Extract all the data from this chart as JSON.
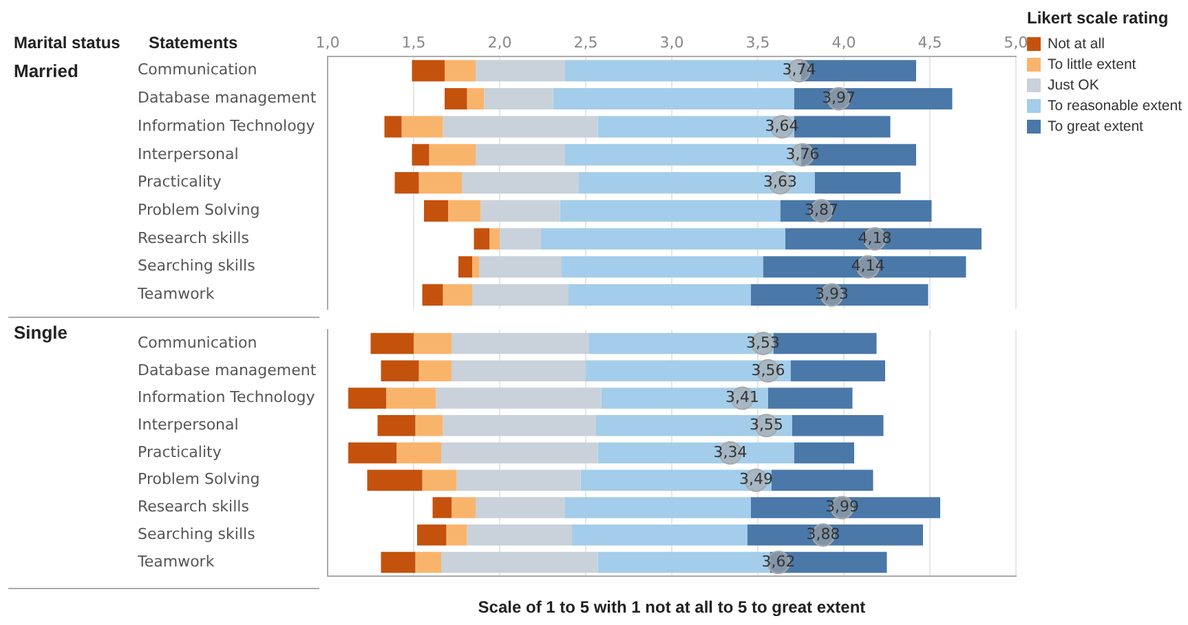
{
  "chart_data": [
    {
      "type": "bar",
      "orientation": "horizontal",
      "ylabel": "Married",
      "annotations": [
        "Marital status",
        "Statements"
      ],
      "legend_title": "Likert scale rating",
      "legend": "top right",
      "grid": "x",
      "categories": [
        "Communication",
        "Database management",
        "Information Technology",
        "Interpersonal",
        "Practicality",
        "Problem Solving",
        "Research skills",
        "Searching skills",
        "Teamwork"
      ],
      "xlim": [
        1,
        5
      ],
      "xticks": [
        {
          "value": 1,
          "label": "1,0"
        },
        {
          "value": 1.5,
          "label": "1,5"
        },
        {
          "value": 2,
          "label": "2,0"
        },
        {
          "value": 2.5,
          "label": "2,5"
        },
        {
          "value": 3,
          "label": "3,0"
        },
        {
          "value": 3.5,
          "label": "3,5"
        },
        {
          "value": 4,
          "label": "4,0"
        },
        {
          "value": 4.5,
          "label": "4,5"
        },
        {
          "value": 5,
          "label": "5,0"
        }
      ],
      "series": [
        {
          "name": "Not at all",
          "color": "#c4520c",
          "base": [
            1.49,
            1.68,
            1.33,
            1.49,
            1.39,
            1.56,
            1.85,
            1.76,
            1.55
          ],
          "values": [
            0.19,
            0.13,
            0.1,
            0.1,
            0.14,
            0.14,
            0.09,
            0.08,
            0.12
          ]
        },
        {
          "name": "To little extent",
          "color": "#f9b46c",
          "base": [
            1.68,
            1.81,
            1.43,
            1.59,
            1.53,
            1.7,
            1.94,
            1.84,
            1.67
          ],
          "values": [
            0.18,
            0.1,
            0.24,
            0.27,
            0.25,
            0.19,
            0.06,
            0.04,
            0.17
          ]
        },
        {
          "name": "Just OK",
          "color": "#c9d1da",
          "base": [
            1.86,
            1.91,
            1.67,
            1.86,
            1.78,
            1.89,
            2.0,
            1.88,
            1.84
          ],
          "values": [
            0.52,
            0.4,
            0.9,
            0.52,
            0.68,
            0.46,
            0.24,
            0.48,
            0.56
          ]
        },
        {
          "name": "To reasonable extent",
          "color": "#a3cdea",
          "base": [
            2.38,
            2.31,
            2.57,
            2.38,
            2.46,
            2.35,
            2.24,
            2.36,
            2.4
          ],
          "values": [
            1.37,
            1.4,
            1.14,
            1.37,
            1.37,
            1.28,
            1.42,
            1.17,
            1.06
          ]
        },
        {
          "name": "To great extent",
          "color": "#4a78a8",
          "base": [
            3.75,
            3.71,
            3.71,
            3.75,
            3.83,
            3.63,
            3.66,
            3.53,
            3.46
          ],
          "values": [
            0.67,
            0.92,
            0.56,
            0.67,
            0.5,
            0.88,
            1.14,
            1.18,
            1.03
          ]
        },
        {
          "type": "scatter",
          "color": "#a8a8a8",
          "values": [
            3.74,
            3.97,
            3.64,
            3.76,
            3.63,
            3.87,
            4.18,
            4.14,
            3.93
          ],
          "value_labels": [
            "3,74",
            "3,97",
            "3,64",
            "3,76",
            "3,63",
            "3,87",
            "4,18",
            "4,14",
            "3,93"
          ]
        }
      ]
    },
    {
      "type": "bar",
      "orientation": "horizontal",
      "ylabel": "Single",
      "xlabel": "Scale of 1 to 5 with 1 not at all to 5 to great extent",
      "grid": "x",
      "tick_labels": "y",
      "categories": [
        "Communication",
        "Database management",
        "Information Technology",
        "Interpersonal",
        "Practicality",
        "Problem Solving",
        "Research skills",
        "Searching skills",
        "Teamwork"
      ],
      "xlim": [
        1,
        5
      ],
      "xticks": [
        1,
        1.5,
        2,
        2.5,
        3,
        3.5,
        4,
        4.5,
        5
      ],
      "series": [
        {
          "color": "#c4520c",
          "base": [
            1.25,
            1.31,
            1.12,
            1.29,
            1.12,
            1.23,
            1.61,
            1.52,
            1.31
          ],
          "values": [
            0.25,
            0.22,
            0.22,
            0.22,
            0.28,
            0.32,
            0.11,
            0.17,
            0.2
          ]
        },
        {
          "color": "#f9b46c",
          "base": [
            1.5,
            1.53,
            1.34,
            1.51,
            1.4,
            1.55,
            1.72,
            1.69,
            1.51
          ],
          "values": [
            0.22,
            0.19,
            0.29,
            0.16,
            0.26,
            0.2,
            0.14,
            0.12,
            0.15
          ]
        },
        {
          "color": "#c9d1da",
          "base": [
            1.72,
            1.72,
            1.63,
            1.67,
            1.66,
            1.75,
            1.86,
            1.81,
            1.66
          ],
          "values": [
            0.8,
            0.78,
            0.96,
            0.89,
            0.91,
            0.72,
            0.52,
            0.61,
            0.91
          ]
        },
        {
          "color": "#a3cdea",
          "base": [
            2.52,
            2.5,
            2.59,
            2.56,
            2.57,
            2.47,
            2.38,
            2.42,
            2.57
          ],
          "values": [
            1.07,
            1.19,
            0.97,
            1.14,
            1.14,
            1.11,
            1.08,
            1.02,
            1.0
          ]
        },
        {
          "color": "#4a78a8",
          "base": [
            3.59,
            3.69,
            3.56,
            3.7,
            3.71,
            3.58,
            3.46,
            3.44,
            3.57
          ],
          "values": [
            0.6,
            0.55,
            0.49,
            0.53,
            0.35,
            0.59,
            1.1,
            1.02,
            0.68
          ]
        },
        {
          "type": "scatter",
          "color": "#a8a8a8",
          "values": [
            3.53,
            3.56,
            3.41,
            3.55,
            3.34,
            3.49,
            3.99,
            3.88,
            3.62
          ],
          "value_labels": [
            "3,53",
            "3,56",
            "3,41",
            "3,55",
            "3,34",
            "3,49",
            "3,99",
            "3,88",
            "3,62"
          ]
        }
      ]
    }
  ]
}
